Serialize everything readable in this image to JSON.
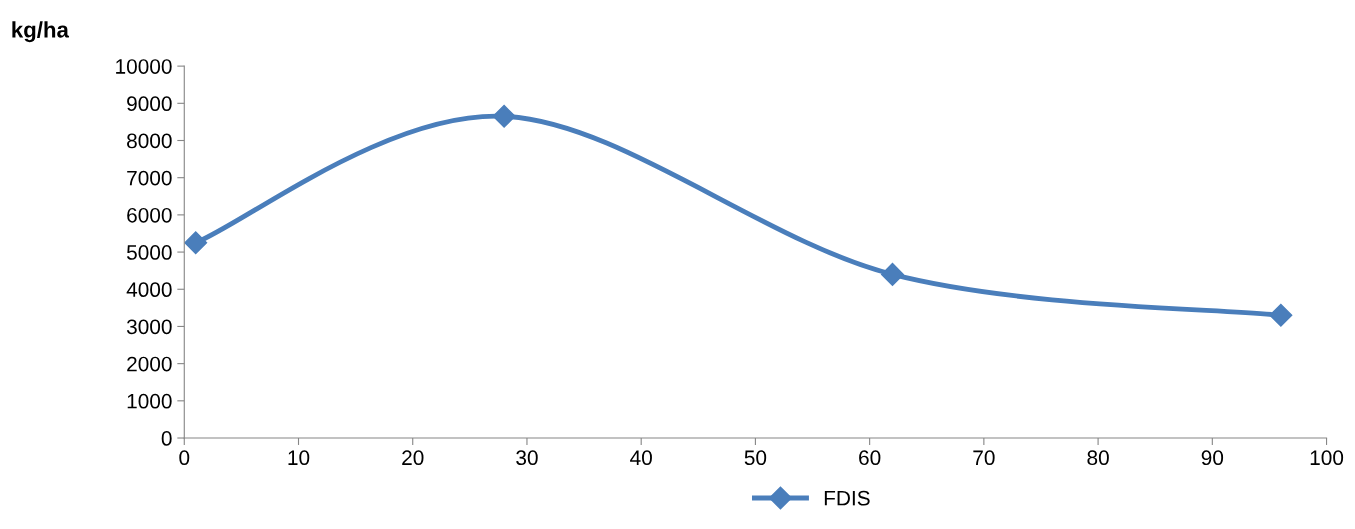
{
  "chart_data": {
    "type": "line",
    "ylabel": "kg/ha",
    "x": [
      1,
      28,
      62,
      96
    ],
    "series": [
      {
        "name": "FDIS",
        "color": "#4a7ebb",
        "values": [
          5250,
          8650,
          4400,
          3300
        ]
      }
    ],
    "xlim": [
      0,
      100
    ],
    "xticks": [
      0,
      10,
      20,
      30,
      40,
      50,
      60,
      70,
      80,
      90,
      100
    ],
    "ylim": [
      0,
      10000
    ],
    "yticks": [
      0,
      1000,
      2000,
      3000,
      4000,
      5000,
      6000,
      7000,
      8000,
      9000,
      10000
    ],
    "grid": false,
    "legend": "bottom",
    "marker": "diamond",
    "line_style": "solid"
  }
}
